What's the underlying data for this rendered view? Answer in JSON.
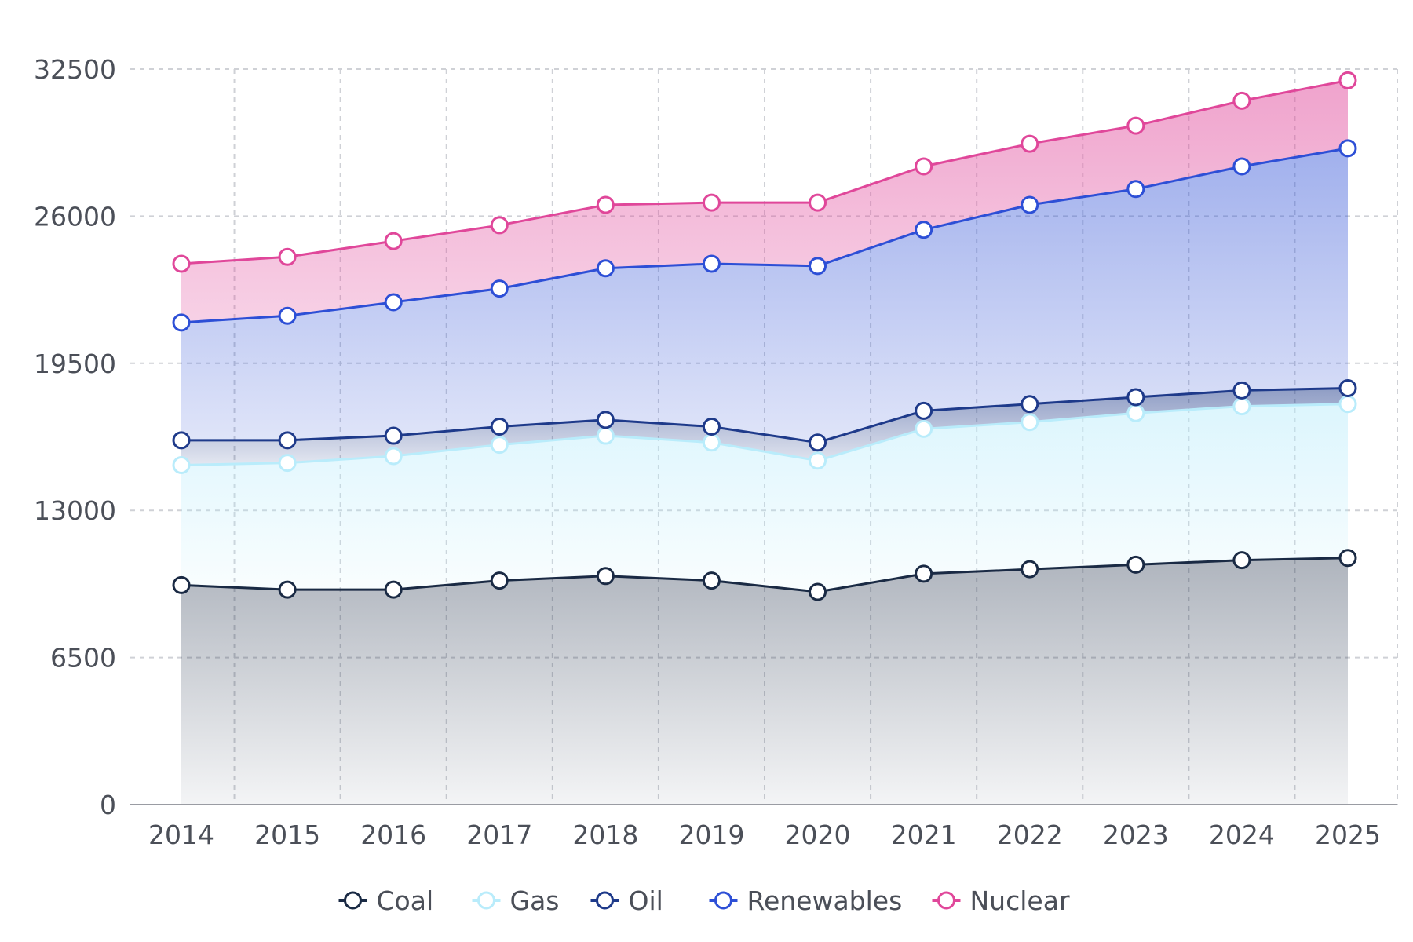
{
  "chart_data": {
    "type": "area",
    "stacked": true,
    "categories": [
      "2014",
      "2015",
      "2016",
      "2017",
      "2018",
      "2019",
      "2020",
      "2021",
      "2022",
      "2023",
      "2024",
      "2025"
    ],
    "series": [
      {
        "name": "Coal",
        "color": "#1a2a44",
        "values": [
          9700,
          9500,
          9500,
          9900,
          10100,
          9900,
          9400,
          10200,
          10400,
          10600,
          10800,
          10900
        ]
      },
      {
        "name": "Gas",
        "color": "#b9ecfb",
        "values": [
          5300,
          5600,
          5900,
          6000,
          6200,
          6100,
          5800,
          6400,
          6500,
          6700,
          6800,
          6800
        ]
      },
      {
        "name": "Oil",
        "color": "#1e3a8a",
        "values": [
          1100,
          1000,
          900,
          800,
          700,
          700,
          800,
          800,
          800,
          700,
          700,
          700
        ]
      },
      {
        "name": "Renewables",
        "color": "#2d4fd6",
        "values": [
          5200,
          5500,
          5900,
          6100,
          6700,
          7200,
          7800,
          8000,
          8800,
          9200,
          9900,
          10600
        ]
      },
      {
        "name": "Nuclear",
        "color": "#e0479a",
        "values": [
          2600,
          2600,
          2700,
          2800,
          2800,
          2700,
          2800,
          2800,
          2700,
          2800,
          2900,
          3000
        ]
      }
    ],
    "yticks": [
      "0",
      "6500",
      "13000",
      "19500",
      "26000",
      "32500"
    ],
    "ylim": [
      0,
      32500
    ],
    "grid": true,
    "legend_position": "bottom-center"
  }
}
